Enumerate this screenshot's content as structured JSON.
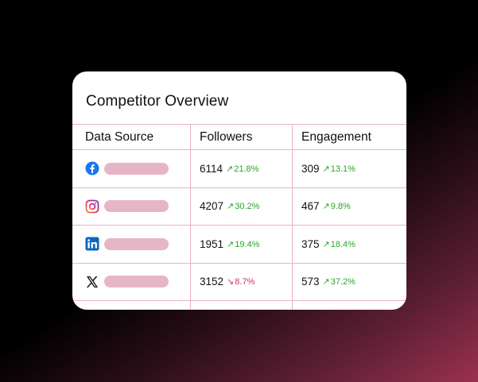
{
  "card": {
    "title": "Competitor Overview",
    "headers": {
      "source": "Data Source",
      "followers": "Followers",
      "engagement": "Engagement"
    },
    "rows": [
      {
        "icon": "facebook-icon",
        "followers": "6114",
        "followers_change": "21.8%",
        "followers_dir": "up",
        "engagement": "309",
        "engagement_change": "13.1%",
        "engagement_dir": "up"
      },
      {
        "icon": "instagram-icon",
        "followers": "4207",
        "followers_change": "30.2%",
        "followers_dir": "up",
        "engagement": "467",
        "engagement_change": "9.8%",
        "engagement_dir": "up"
      },
      {
        "icon": "linkedin-icon",
        "followers": "1951",
        "followers_change": "19.4%",
        "followers_dir": "up",
        "engagement": "375",
        "engagement_change": "18.4%",
        "engagement_dir": "up"
      },
      {
        "icon": "x-icon",
        "followers": "3152",
        "followers_change": "8.7%",
        "followers_dir": "down",
        "engagement": "573",
        "engagement_change": "37.2%",
        "engagement_dir": "up"
      }
    ]
  },
  "colors": {
    "up": "#2aa52a",
    "down": "#d6305f",
    "grid": "#e9b3c3",
    "placeholder": "#e6b6c5"
  }
}
